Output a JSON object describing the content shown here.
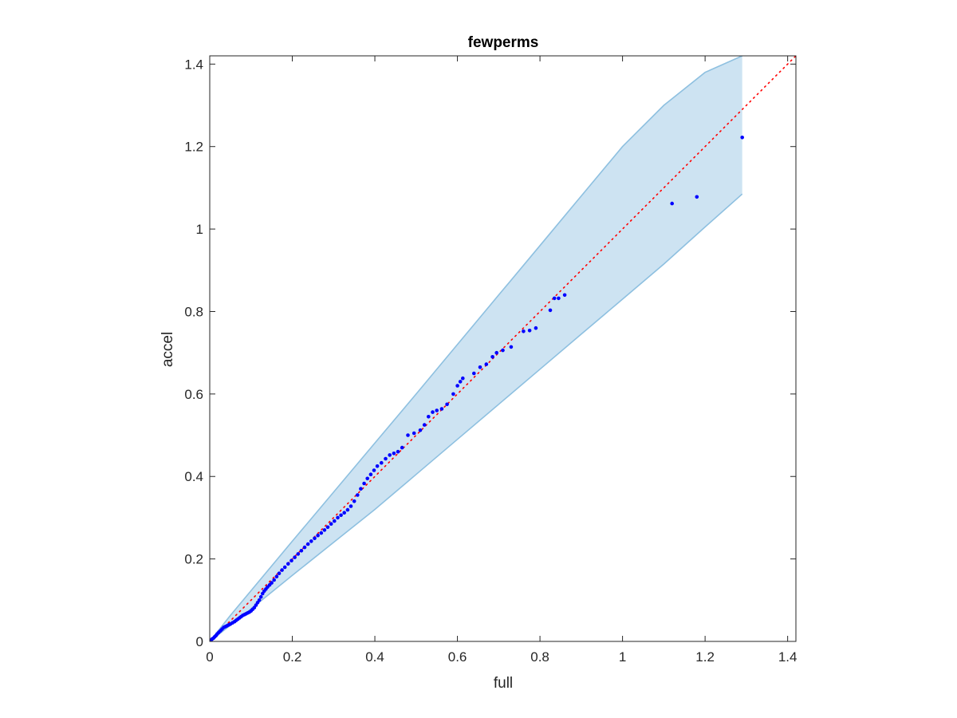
{
  "chart_data": {
    "type": "scatter",
    "title": "fewperms",
    "xlabel": "full",
    "ylabel": "accel",
    "xlim": [
      0,
      1.42
    ],
    "ylim": [
      0,
      1.42
    ],
    "xticks": [
      "0",
      "0.2",
      "0.4",
      "0.6",
      "0.8",
      "1",
      "1.2",
      "1.4"
    ],
    "yticks": [
      "0",
      "0.2",
      "0.4",
      "0.6",
      "0.8",
      "1",
      "1.2",
      "1.4"
    ],
    "grid": false,
    "reference_line": {
      "style": "dotted",
      "color": "#ff0000",
      "x": [
        0,
        1.42
      ],
      "y": [
        0,
        1.42
      ]
    },
    "confidence_band": {
      "color": "#cde3f2",
      "edge_color": "#8ec0e0",
      "x": [
        0,
        0.05,
        0.1,
        0.2,
        0.3,
        0.4,
        0.5,
        0.6,
        0.7,
        0.8,
        0.9,
        1.0,
        1.1,
        1.2,
        1.29
      ],
      "upper": [
        0,
        0.063,
        0.123,
        0.243,
        0.362,
        0.481,
        0.6,
        0.72,
        0.84,
        0.96,
        1.08,
        1.2,
        1.3,
        1.38,
        1.42
      ],
      "lower": [
        0,
        0.039,
        0.079,
        0.16,
        0.24,
        0.32,
        0.405,
        0.49,
        0.575,
        0.66,
        0.745,
        0.83,
        0.915,
        1.005,
        1.085
      ]
    },
    "series": [
      {
        "color": "#0000ff",
        "points": [
          [
            0.003,
            0.003
          ],
          [
            0.006,
            0.006
          ],
          [
            0.009,
            0.008
          ],
          [
            0.012,
            0.011
          ],
          [
            0.015,
            0.014
          ],
          [
            0.018,
            0.018
          ],
          [
            0.022,
            0.022
          ],
          [
            0.026,
            0.026
          ],
          [
            0.03,
            0.03
          ],
          [
            0.034,
            0.034
          ],
          [
            0.038,
            0.036
          ],
          [
            0.042,
            0.038
          ],
          [
            0.046,
            0.04
          ],
          [
            0.05,
            0.042
          ],
          [
            0.055,
            0.045
          ],
          [
            0.06,
            0.048
          ],
          [
            0.064,
            0.051
          ],
          [
            0.068,
            0.054
          ],
          [
            0.072,
            0.057
          ],
          [
            0.076,
            0.06
          ],
          [
            0.08,
            0.063
          ],
          [
            0.084,
            0.065
          ],
          [
            0.088,
            0.067
          ],
          [
            0.092,
            0.069
          ],
          [
            0.096,
            0.071
          ],
          [
            0.1,
            0.074
          ],
          [
            0.104,
            0.078
          ],
          [
            0.108,
            0.082
          ],
          [
            0.112,
            0.088
          ],
          [
            0.116,
            0.094
          ],
          [
            0.12,
            0.1
          ],
          [
            0.124,
            0.108
          ],
          [
            0.128,
            0.116
          ],
          [
            0.132,
            0.122
          ],
          [
            0.136,
            0.127
          ],
          [
            0.14,
            0.132
          ],
          [
            0.145,
            0.137
          ],
          [
            0.15,
            0.142
          ],
          [
            0.156,
            0.149
          ],
          [
            0.162,
            0.157
          ],
          [
            0.168,
            0.165
          ],
          [
            0.175,
            0.173
          ],
          [
            0.182,
            0.18
          ],
          [
            0.19,
            0.188
          ],
          [
            0.198,
            0.196
          ],
          [
            0.206,
            0.204
          ],
          [
            0.214,
            0.212
          ],
          [
            0.222,
            0.22
          ],
          [
            0.23,
            0.228
          ],
          [
            0.238,
            0.236
          ],
          [
            0.246,
            0.243
          ],
          [
            0.254,
            0.25
          ],
          [
            0.262,
            0.257
          ],
          [
            0.27,
            0.263
          ],
          [
            0.278,
            0.27
          ],
          [
            0.286,
            0.277
          ],
          [
            0.294,
            0.285
          ],
          [
            0.302,
            0.292
          ],
          [
            0.31,
            0.3
          ],
          [
            0.318,
            0.306
          ],
          [
            0.326,
            0.312
          ],
          [
            0.334,
            0.319
          ],
          [
            0.342,
            0.328
          ],
          [
            0.35,
            0.34
          ],
          [
            0.358,
            0.355
          ],
          [
            0.366,
            0.37
          ],
          [
            0.374,
            0.383
          ],
          [
            0.382,
            0.395
          ],
          [
            0.39,
            0.405
          ],
          [
            0.398,
            0.415
          ],
          [
            0.406,
            0.425
          ],
          [
            0.416,
            0.433
          ],
          [
            0.426,
            0.443
          ],
          [
            0.436,
            0.452
          ],
          [
            0.446,
            0.456
          ],
          [
            0.456,
            0.46
          ],
          [
            0.466,
            0.47
          ],
          [
            0.48,
            0.5
          ],
          [
            0.495,
            0.505
          ],
          [
            0.51,
            0.512
          ],
          [
            0.52,
            0.525
          ],
          [
            0.53,
            0.545
          ],
          [
            0.54,
            0.556
          ],
          [
            0.55,
            0.56
          ],
          [
            0.562,
            0.564
          ],
          [
            0.575,
            0.575
          ],
          [
            0.59,
            0.6
          ],
          [
            0.6,
            0.62
          ],
          [
            0.607,
            0.63
          ],
          [
            0.613,
            0.638
          ],
          [
            0.64,
            0.65
          ],
          [
            0.655,
            0.665
          ],
          [
            0.67,
            0.672
          ],
          [
            0.685,
            0.69
          ],
          [
            0.695,
            0.7
          ],
          [
            0.71,
            0.706
          ],
          [
            0.73,
            0.714
          ],
          [
            0.76,
            0.752
          ],
          [
            0.775,
            0.754
          ],
          [
            0.79,
            0.76
          ],
          [
            0.825,
            0.803
          ],
          [
            0.835,
            0.832
          ],
          [
            0.845,
            0.832
          ],
          [
            0.86,
            0.84
          ],
          [
            1.12,
            1.062
          ],
          [
            1.18,
            1.078
          ],
          [
            1.29,
            1.222
          ]
        ]
      }
    ]
  }
}
